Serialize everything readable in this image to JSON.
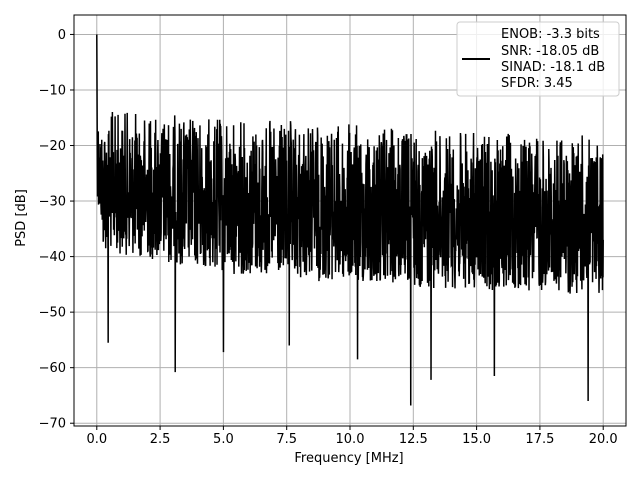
{
  "chart_data": {
    "type": "line",
    "title": "",
    "xlabel": "Frequency [MHz]",
    "ylabel": "PSD [dB]",
    "xlim": [
      -0.9,
      20.9
    ],
    "ylim": [
      -70.5,
      3.5
    ],
    "xticks": [
      0.0,
      2.5,
      5.0,
      7.5,
      10.0,
      12.5,
      15.0,
      17.5,
      20.0
    ],
    "xtick_labels": [
      "0.0",
      "2.5",
      "5.0",
      "7.5",
      "10.0",
      "12.5",
      "15.0",
      "17.5",
      "20.0"
    ],
    "yticks": [
      0,
      -10,
      -20,
      -30,
      -40,
      -50,
      -60,
      -70
    ],
    "ytick_labels": [
      "0",
      "−10",
      "−20",
      "−30",
      "−40",
      "−50",
      "−60",
      "−70"
    ],
    "grid": true,
    "legend_position": "top-right",
    "series": [
      {
        "name": "ENOB: -3.3 bits\nSNR: -18.05 dB\nSINAD: -18.1 dB\nSFDR: 3.45",
        "legend_lines": [
          "ENOB: -3.3 bits",
          "SNR: -18.05 dB",
          "SINAD: -18.1 dB",
          "SFDR: 3.45"
        ],
        "color": "#000000",
        "x_range": [
          0.0,
          20.0
        ],
        "points": 2048,
        "peak": {
          "x": 0.0,
          "y": 0.0
        },
        "low_frequency_rolloff": [
          [
            0.0,
            0.0
          ],
          [
            0.02,
            -10
          ],
          [
            0.05,
            -14
          ],
          [
            0.1,
            -16
          ],
          [
            0.2,
            -17
          ]
        ],
        "upper_envelope": [
          [
            0.3,
            -13.5
          ],
          [
            2.5,
            -14
          ],
          [
            5.0,
            -15
          ],
          [
            7.5,
            -15.5
          ],
          [
            10.0,
            -16
          ],
          [
            12.5,
            -17
          ],
          [
            15.0,
            -17.5
          ],
          [
            17.5,
            -18
          ],
          [
            20.0,
            -18
          ]
        ],
        "typical_lower_envelope": [
          [
            0.3,
            -37
          ],
          [
            5.0,
            -41
          ],
          [
            10.0,
            -43
          ],
          [
            15.0,
            -44
          ],
          [
            20.0,
            -45
          ]
        ],
        "deep_nulls": [
          {
            "x": 0.45,
            "y": -55.5
          },
          {
            "x": 3.1,
            "y": -60.8
          },
          {
            "x": 5.0,
            "y": -57.2
          },
          {
            "x": 7.6,
            "y": -56.0
          },
          {
            "x": 10.3,
            "y": -58.5
          },
          {
            "x": 12.4,
            "y": -66.8
          },
          {
            "x": 13.2,
            "y": -62.2
          },
          {
            "x": 15.7,
            "y": -61.5
          },
          {
            "x": 19.4,
            "y": -66.0
          }
        ]
      }
    ]
  }
}
